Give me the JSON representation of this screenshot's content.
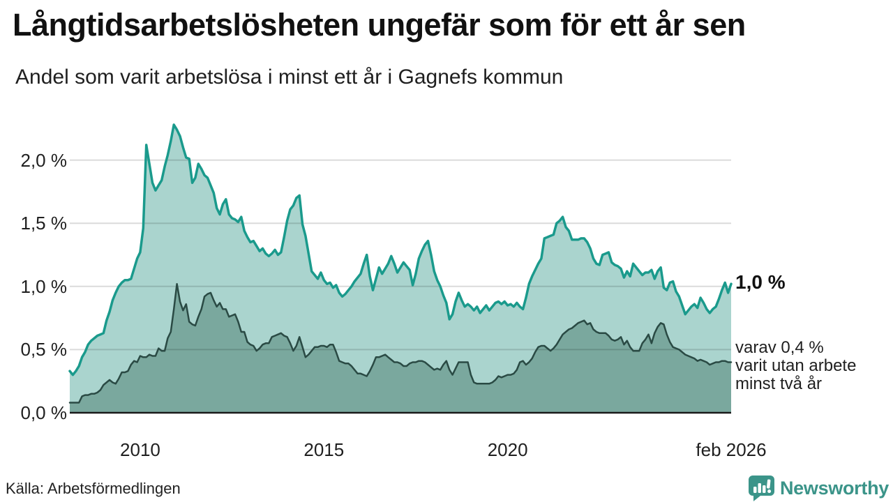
{
  "header": {
    "title": "Långtidsarbetslösheten ungefär som för ett år sen",
    "subtitle": "Andel som varit arbetslösa i minst ett år i Gagnefs kommun"
  },
  "annotations": {
    "primary_end_label": "1,0 %",
    "secondary_lines": [
      "varav 0,4 %",
      "varit utan arbete",
      "minst två år"
    ]
  },
  "footer": {
    "source": "Källa: Arbetsförmedlingen",
    "brand": "Newsworthy"
  },
  "colors": {
    "primary_line": "#1a9a8c",
    "primary_fill": "#aad4ce",
    "secondary_line": "#2a4a44",
    "secondary_fill": "#7aa89e",
    "grid": "rgba(0,0,0,0.14)",
    "axis": "#1a1a1a",
    "brand_teal": "#3b9489"
  },
  "chart_data": {
    "type": "area",
    "title": "Långtidsarbetslösheten ungefär som för ett år sen",
    "subtitle": "Andel som varit arbetslösa i minst ett år i Gagnefs kommun",
    "xlabel": "",
    "ylabel": "",
    "unit": "%",
    "x_start": 2008.083,
    "x_end": 2026.083,
    "ylim": [
      0,
      2.33
    ],
    "grid": true,
    "y_ticks": [
      {
        "value": 2.0,
        "label": "2,0 %"
      },
      {
        "value": 1.5,
        "label": "1,5 %"
      },
      {
        "value": 1.0,
        "label": "1,0 %"
      },
      {
        "value": 0.5,
        "label": "0,5 %"
      },
      {
        "value": 0.0,
        "label": "0,0 %"
      }
    ],
    "x_ticks": [
      {
        "year": 2010,
        "label": "2010"
      },
      {
        "year": 2015,
        "label": "2015"
      },
      {
        "year": 2020,
        "label": "2020"
      },
      {
        "year": 2026.083,
        "label": "feb 2026"
      }
    ],
    "series": [
      {
        "id": "primary",
        "name": "Andel arbetslösa minst ett år",
        "end_value": 1.0,
        "color": "#1a9a8c",
        "fill": "#aad4ce",
        "stroke_width": 3.5,
        "values": [
          0.33,
          0.3,
          0.33,
          0.37,
          0.44,
          0.48,
          0.54,
          0.57,
          0.59,
          0.61,
          0.62,
          0.63,
          0.73,
          0.8,
          0.89,
          0.95,
          1.0,
          1.03,
          1.05,
          1.05,
          1.06,
          1.14,
          1.22,
          1.27,
          1.46,
          2.12,
          1.97,
          1.82,
          1.76,
          1.8,
          1.84,
          1.95,
          2.04,
          2.15,
          2.28,
          2.24,
          2.19,
          2.1,
          2.02,
          2.01,
          1.82,
          1.86,
          1.97,
          1.93,
          1.88,
          1.86,
          1.8,
          1.74,
          1.62,
          1.57,
          1.65,
          1.69,
          1.57,
          1.54,
          1.53,
          1.51,
          1.55,
          1.44,
          1.39,
          1.35,
          1.36,
          1.32,
          1.28,
          1.3,
          1.26,
          1.24,
          1.26,
          1.29,
          1.25,
          1.27,
          1.39,
          1.52,
          1.61,
          1.64,
          1.7,
          1.72,
          1.49,
          1.4,
          1.26,
          1.12,
          1.09,
          1.06,
          1.11,
          1.05,
          1.02,
          1.03,
          0.99,
          1.01,
          0.95,
          0.92,
          0.94,
          0.97,
          1.0,
          1.04,
          1.07,
          1.1,
          1.18,
          1.25,
          1.08,
          0.97,
          1.06,
          1.15,
          1.1,
          1.14,
          1.18,
          1.24,
          1.18,
          1.11,
          1.15,
          1.19,
          1.16,
          1.13,
          1.01,
          1.1,
          1.22,
          1.28,
          1.33,
          1.36,
          1.25,
          1.12,
          1.05,
          1.0,
          0.93,
          0.87,
          0.74,
          0.78,
          0.88,
          0.95,
          0.89,
          0.84,
          0.86,
          0.84,
          0.81,
          0.84,
          0.79,
          0.82,
          0.85,
          0.81,
          0.84,
          0.87,
          0.88,
          0.86,
          0.88,
          0.85,
          0.86,
          0.84,
          0.87,
          0.84,
          0.82,
          0.91,
          1.02,
          1.08,
          1.13,
          1.18,
          1.22,
          1.38,
          1.39,
          1.4,
          1.41,
          1.5,
          1.52,
          1.55,
          1.47,
          1.44,
          1.37,
          1.37,
          1.37,
          1.38,
          1.38,
          1.35,
          1.3,
          1.22,
          1.18,
          1.17,
          1.25,
          1.26,
          1.27,
          1.19,
          1.17,
          1.16,
          1.14,
          1.07,
          1.12,
          1.08,
          1.18,
          1.15,
          1.12,
          1.09,
          1.11,
          1.11,
          1.13,
          1.06,
          1.12,
          1.15,
          0.99,
          0.97,
          1.03,
          1.04,
          0.96,
          0.92,
          0.85,
          0.78,
          0.81,
          0.84,
          0.86,
          0.83,
          0.91,
          0.87,
          0.82,
          0.79,
          0.82,
          0.84,
          0.9,
          0.97,
          1.03,
          0.95,
          1.02
        ]
      },
      {
        "id": "secondary",
        "name": "varav utan arbete minst två år",
        "end_value": 0.4,
        "color": "#2a4a44",
        "fill": "#7aa89e",
        "stroke_width": 2.5,
        "values": [
          0.08,
          0.08,
          0.08,
          0.08,
          0.13,
          0.14,
          0.14,
          0.15,
          0.15,
          0.16,
          0.18,
          0.22,
          0.24,
          0.26,
          0.24,
          0.23,
          0.27,
          0.32,
          0.32,
          0.33,
          0.38,
          0.41,
          0.4,
          0.45,
          0.44,
          0.44,
          0.46,
          0.45,
          0.45,
          0.51,
          0.49,
          0.49,
          0.59,
          0.64,
          0.82,
          1.02,
          0.88,
          0.81,
          0.86,
          0.72,
          0.7,
          0.69,
          0.76,
          0.82,
          0.92,
          0.94,
          0.95,
          0.89,
          0.84,
          0.87,
          0.82,
          0.82,
          0.76,
          0.77,
          0.78,
          0.72,
          0.64,
          0.64,
          0.56,
          0.54,
          0.53,
          0.49,
          0.51,
          0.54,
          0.55,
          0.55,
          0.6,
          0.61,
          0.62,
          0.63,
          0.61,
          0.6,
          0.55,
          0.49,
          0.53,
          0.6,
          0.52,
          0.44,
          0.46,
          0.49,
          0.52,
          0.52,
          0.53,
          0.53,
          0.52,
          0.54,
          0.54,
          0.48,
          0.41,
          0.4,
          0.39,
          0.39,
          0.37,
          0.34,
          0.31,
          0.31,
          0.3,
          0.29,
          0.33,
          0.38,
          0.44,
          0.44,
          0.45,
          0.46,
          0.44,
          0.42,
          0.4,
          0.4,
          0.39,
          0.37,
          0.37,
          0.39,
          0.4,
          0.4,
          0.41,
          0.41,
          0.4,
          0.38,
          0.36,
          0.34,
          0.35,
          0.34,
          0.38,
          0.41,
          0.34,
          0.3,
          0.35,
          0.4,
          0.4,
          0.4,
          0.4,
          0.3,
          0.24,
          0.23,
          0.23,
          0.23,
          0.23,
          0.23,
          0.24,
          0.26,
          0.29,
          0.28,
          0.29,
          0.3,
          0.3,
          0.31,
          0.34,
          0.4,
          0.41,
          0.38,
          0.4,
          0.43,
          0.48,
          0.52,
          0.53,
          0.53,
          0.51,
          0.49,
          0.51,
          0.54,
          0.58,
          0.62,
          0.64,
          0.66,
          0.67,
          0.69,
          0.71,
          0.72,
          0.73,
          0.7,
          0.71,
          0.66,
          0.64,
          0.63,
          0.63,
          0.63,
          0.61,
          0.58,
          0.57,
          0.58,
          0.6,
          0.54,
          0.57,
          0.52,
          0.49,
          0.49,
          0.49,
          0.55,
          0.58,
          0.62,
          0.55,
          0.63,
          0.68,
          0.71,
          0.7,
          0.62,
          0.56,
          0.52,
          0.51,
          0.5,
          0.48,
          0.46,
          0.45,
          0.44,
          0.43,
          0.41,
          0.42,
          0.41,
          0.4,
          0.38,
          0.39,
          0.4,
          0.4,
          0.41,
          0.41,
          0.4,
          0.4
        ]
      }
    ]
  }
}
